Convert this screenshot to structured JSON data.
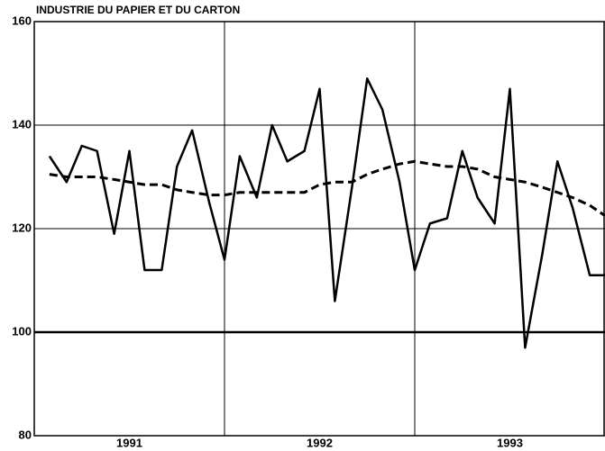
{
  "chart_data": {
    "type": "line",
    "title": "INDUSTRIE DU PAPIER ET DU CARTON",
    "x": [
      1991.08,
      1991.17,
      1991.25,
      1991.33,
      1991.42,
      1991.5,
      1991.58,
      1991.67,
      1991.75,
      1991.83,
      1991.92,
      1992.0,
      1992.08,
      1992.17,
      1992.25,
      1992.33,
      1992.42,
      1992.5,
      1992.58,
      1992.67,
      1992.75,
      1992.83,
      1992.92,
      1993.0,
      1993.08,
      1993.17,
      1993.25,
      1993.33,
      1993.42,
      1993.5,
      1993.58,
      1993.67,
      1993.75,
      1993.83,
      1993.92,
      1994.0
    ],
    "series": [
      {
        "color": "#000000",
        "style": "solid",
        "values": [
          134,
          129,
          136,
          135,
          119,
          135,
          112,
          112,
          132,
          139,
          125,
          114,
          134,
          126,
          140,
          133,
          135,
          147,
          106,
          128,
          149,
          143,
          129,
          112,
          121,
          122,
          135,
          126,
          121,
          147,
          97,
          115,
          133,
          124,
          111,
          111
        ]
      },
      {
        "color": "#000000",
        "style": "dashed",
        "values": [
          130.5,
          130,
          130,
          130,
          129.5,
          129,
          128.5,
          128.5,
          127.5,
          127,
          126.5,
          126.5,
          127,
          127,
          127,
          127,
          127,
          128.5,
          129,
          129,
          130.5,
          131.5,
          132.5,
          133,
          132.5,
          132,
          132,
          131.5,
          130,
          129.5,
          129,
          128,
          127,
          126,
          124.5,
          122.5
        ]
      }
    ],
    "xlim": [
      1991,
      1994
    ],
    "xticks": [
      {
        "value": 1991.5,
        "label": "1991"
      },
      {
        "value": 1992.5,
        "label": "1992"
      },
      {
        "value": 1993.5,
        "label": "1993"
      }
    ],
    "xgrid": [
      1992,
      1993
    ],
    "ylim": [
      80,
      160
    ],
    "yticks": [
      80,
      100,
      120,
      140,
      160
    ],
    "grid": true,
    "reference": 100
  }
}
